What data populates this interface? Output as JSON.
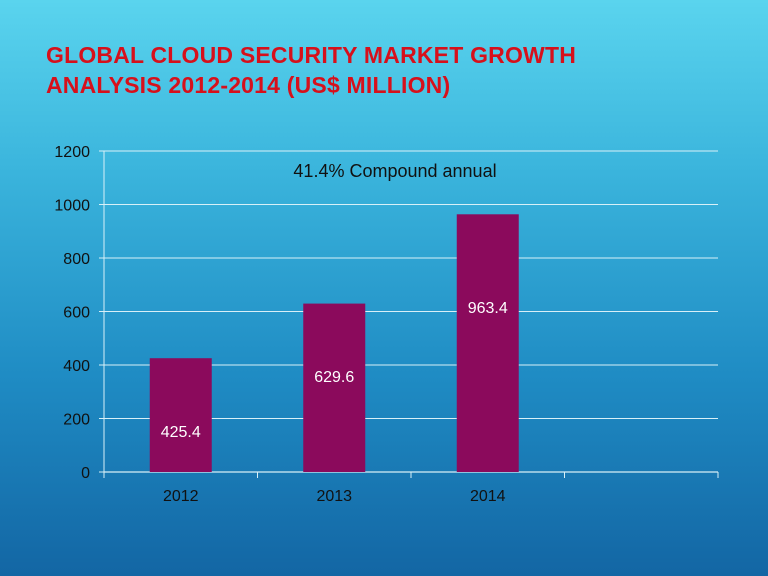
{
  "title": {
    "line1": "GLOBAL CLOUD SECURITY MARKET GROWTH",
    "line2": "ANALYSIS 2012-2014 (US$ MILLION)"
  },
  "colors": {
    "title": "#d7101b",
    "bar": "#8b0a5c",
    "grid": "#d8f0f8",
    "text": "#111111",
    "bar_label": "#ffffff"
  },
  "chart_data": {
    "type": "bar",
    "categories": [
      "2012",
      "2013",
      "2014"
    ],
    "values": [
      425.4,
      629.6,
      963.4
    ],
    "data_labels": [
      "425.4",
      "629.6",
      "963.4"
    ],
    "title": "GLOBAL CLOUD SECURITY MARKET GROWTH ANALYSIS 2012-2014 (US$ MILLION)",
    "annotation": "41.4% Compound annual",
    "xlabel": "",
    "ylabel": "",
    "ylim": [
      0,
      1200
    ],
    "yticks": [
      0,
      200,
      400,
      600,
      800,
      1000,
      1200
    ],
    "grid": true,
    "legend": "none"
  }
}
